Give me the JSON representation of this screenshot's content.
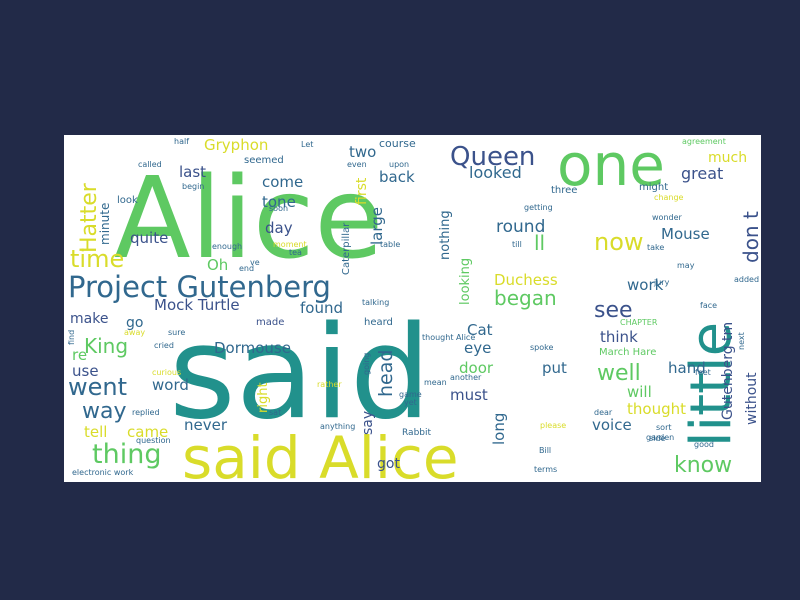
{
  "palette": {
    "background": "#222a48",
    "canvas": "#ffffff",
    "yellow": "#d9dc2a",
    "lime": "#9fd34a",
    "green": "#5ec962",
    "teal": "#21918c",
    "blue": "#3b528b",
    "slate": "#31688e",
    "purple": "#440154"
  },
  "words": [
    {
      "text": "Alice",
      "color": "green"
    },
    {
      "text": "said",
      "color": "teal"
    },
    {
      "text": "one",
      "color": "green"
    },
    {
      "text": "little",
      "color": "teal"
    },
    {
      "text": "said Alice",
      "color": "yellow"
    },
    {
      "text": "Project Gutenberg",
      "color": "slate"
    },
    {
      "text": "Queen",
      "color": "blue"
    },
    {
      "text": "Hatter",
      "color": "yellow"
    },
    {
      "text": "time",
      "color": "yellow"
    },
    {
      "text": "King",
      "color": "green"
    },
    {
      "text": "went",
      "color": "slate"
    },
    {
      "text": "thing",
      "color": "green"
    },
    {
      "text": "way",
      "color": "slate"
    },
    {
      "text": "know",
      "color": "green"
    },
    {
      "text": "now",
      "color": "yellow"
    },
    {
      "text": "see",
      "color": "blue"
    },
    {
      "text": "began",
      "color": "green"
    },
    {
      "text": "well",
      "color": "green"
    },
    {
      "text": "don t",
      "color": "blue"
    },
    {
      "text": "much",
      "color": "yellow"
    },
    {
      "text": "great",
      "color": "blue"
    },
    {
      "text": "Mouse",
      "color": "slate"
    },
    {
      "text": "ll",
      "color": "green"
    },
    {
      "text": "round",
      "color": "slate"
    },
    {
      "text": "looked",
      "color": "slate"
    },
    {
      "text": "back",
      "color": "slate"
    },
    {
      "text": "come",
      "color": "slate"
    },
    {
      "text": "tone",
      "color": "slate"
    },
    {
      "text": "day",
      "color": "blue"
    },
    {
      "text": "large",
      "color": "slate"
    },
    {
      "text": "first",
      "color": "yellow"
    },
    {
      "text": "two",
      "color": "slate"
    },
    {
      "text": "last",
      "color": "blue"
    },
    {
      "text": "quite",
      "color": "blue"
    },
    {
      "text": "Gryphon",
      "color": "yellow"
    },
    {
      "text": "Oh",
      "color": "green"
    },
    {
      "text": "Mock Turtle",
      "color": "blue"
    },
    {
      "text": "found",
      "color": "slate"
    },
    {
      "text": "Duchess",
      "color": "yellow"
    },
    {
      "text": "work",
      "color": "slate"
    },
    {
      "text": "think",
      "color": "blue"
    },
    {
      "text": "Gutenberg tm",
      "color": "blue"
    },
    {
      "text": "head",
      "color": "slate"
    },
    {
      "text": "Dormouse",
      "color": "slate"
    },
    {
      "text": "Cat",
      "color": "slate"
    },
    {
      "text": "eye",
      "color": "slate"
    },
    {
      "text": "door",
      "color": "green"
    },
    {
      "text": "put",
      "color": "slate"
    },
    {
      "text": "must",
      "color": "blue"
    },
    {
      "text": "hand",
      "color": "slate"
    },
    {
      "text": "will",
      "color": "green"
    },
    {
      "text": "thought",
      "color": "yellow"
    },
    {
      "text": "voice",
      "color": "slate"
    },
    {
      "text": "without",
      "color": "blue"
    },
    {
      "text": "long",
      "color": "slate"
    },
    {
      "text": "say",
      "color": "blue"
    },
    {
      "text": "got",
      "color": "blue"
    },
    {
      "text": "never",
      "color": "slate"
    },
    {
      "text": "came",
      "color": "yellow"
    },
    {
      "text": "tell",
      "color": "yellow"
    },
    {
      "text": "word",
      "color": "slate"
    },
    {
      "text": "use",
      "color": "blue"
    },
    {
      "text": "re",
      "color": "green"
    },
    {
      "text": "make",
      "color": "blue"
    },
    {
      "text": "go",
      "color": "slate"
    },
    {
      "text": "right",
      "color": "yellow"
    },
    {
      "text": "nothing",
      "color": "slate"
    },
    {
      "text": "looking",
      "color": "green"
    },
    {
      "text": "minute",
      "color": "slate"
    },
    {
      "text": "course",
      "color": "slate"
    },
    {
      "text": "seemed",
      "color": "slate"
    },
    {
      "text": "might",
      "color": "slate"
    },
    {
      "text": "three",
      "color": "slate"
    },
    {
      "text": "look",
      "color": "slate"
    },
    {
      "text": "Caterpillar",
      "color": "slate"
    },
    {
      "text": "March Hare",
      "color": "green"
    },
    {
      "text": "Rabbit",
      "color": "slate"
    },
    {
      "text": "made",
      "color": "blue"
    },
    {
      "text": "heard",
      "color": "slate"
    },
    {
      "text": "begin",
      "color": "slate"
    },
    {
      "text": "end",
      "color": "slate"
    },
    {
      "text": "enough",
      "color": "slate"
    },
    {
      "text": "ve",
      "color": "slate"
    },
    {
      "text": "upon",
      "color": "slate"
    },
    {
      "text": "table",
      "color": "slate"
    },
    {
      "text": "getting",
      "color": "slate"
    },
    {
      "text": "till",
      "color": "slate"
    },
    {
      "text": "take",
      "color": "slate"
    },
    {
      "text": "may",
      "color": "slate"
    },
    {
      "text": "added",
      "color": "slate"
    },
    {
      "text": "wonder",
      "color": "slate"
    },
    {
      "text": "question",
      "color": "slate"
    },
    {
      "text": "replied",
      "color": "slate"
    },
    {
      "text": "anything",
      "color": "slate"
    },
    {
      "text": "spoke",
      "color": "slate"
    },
    {
      "text": "going",
      "color": "slate"
    },
    {
      "text": "another",
      "color": "slate"
    },
    {
      "text": "dear",
      "color": "slate"
    },
    {
      "text": "please",
      "color": "yellow"
    },
    {
      "text": "side",
      "color": "slate"
    },
    {
      "text": "good",
      "color": "slate"
    },
    {
      "text": "Bill",
      "color": "slate"
    },
    {
      "text": "thought Alice",
      "color": "slate"
    },
    {
      "text": "rather",
      "color": "yellow"
    },
    {
      "text": "sure",
      "color": "slate"
    },
    {
      "text": "cried",
      "color": "slate"
    },
    {
      "text": "curious",
      "color": "yellow"
    },
    {
      "text": "electronic work",
      "color": "slate"
    },
    {
      "text": "mean",
      "color": "slate"
    },
    {
      "text": "agreement",
      "color": "green"
    },
    {
      "text": "find",
      "color": "slate"
    },
    {
      "text": "half",
      "color": "slate"
    },
    {
      "text": "called",
      "color": "slate"
    },
    {
      "text": "soon",
      "color": "slate"
    },
    {
      "text": "even",
      "color": "slate"
    },
    {
      "text": "Let",
      "color": "slate"
    },
    {
      "text": "sort",
      "color": "slate"
    },
    {
      "text": "jury",
      "color": "slate"
    },
    {
      "text": "face",
      "color": "slate"
    },
    {
      "text": "change",
      "color": "yellow"
    },
    {
      "text": "terms",
      "color": "slate"
    },
    {
      "text": "talking",
      "color": "slate"
    },
    {
      "text": "sat",
      "color": "slate"
    },
    {
      "text": "away",
      "color": "yellow"
    },
    {
      "text": "tea",
      "color": "slate"
    },
    {
      "text": "yet",
      "color": "slate"
    },
    {
      "text": "game",
      "color": "slate"
    },
    {
      "text": "next",
      "color": "slate"
    },
    {
      "text": "garden",
      "color": "slate"
    },
    {
      "text": "CHAPTER",
      "color": "green"
    },
    {
      "text": "moment",
      "color": "yellow"
    },
    {
      "text": "feet",
      "color": "slate"
    }
  ]
}
